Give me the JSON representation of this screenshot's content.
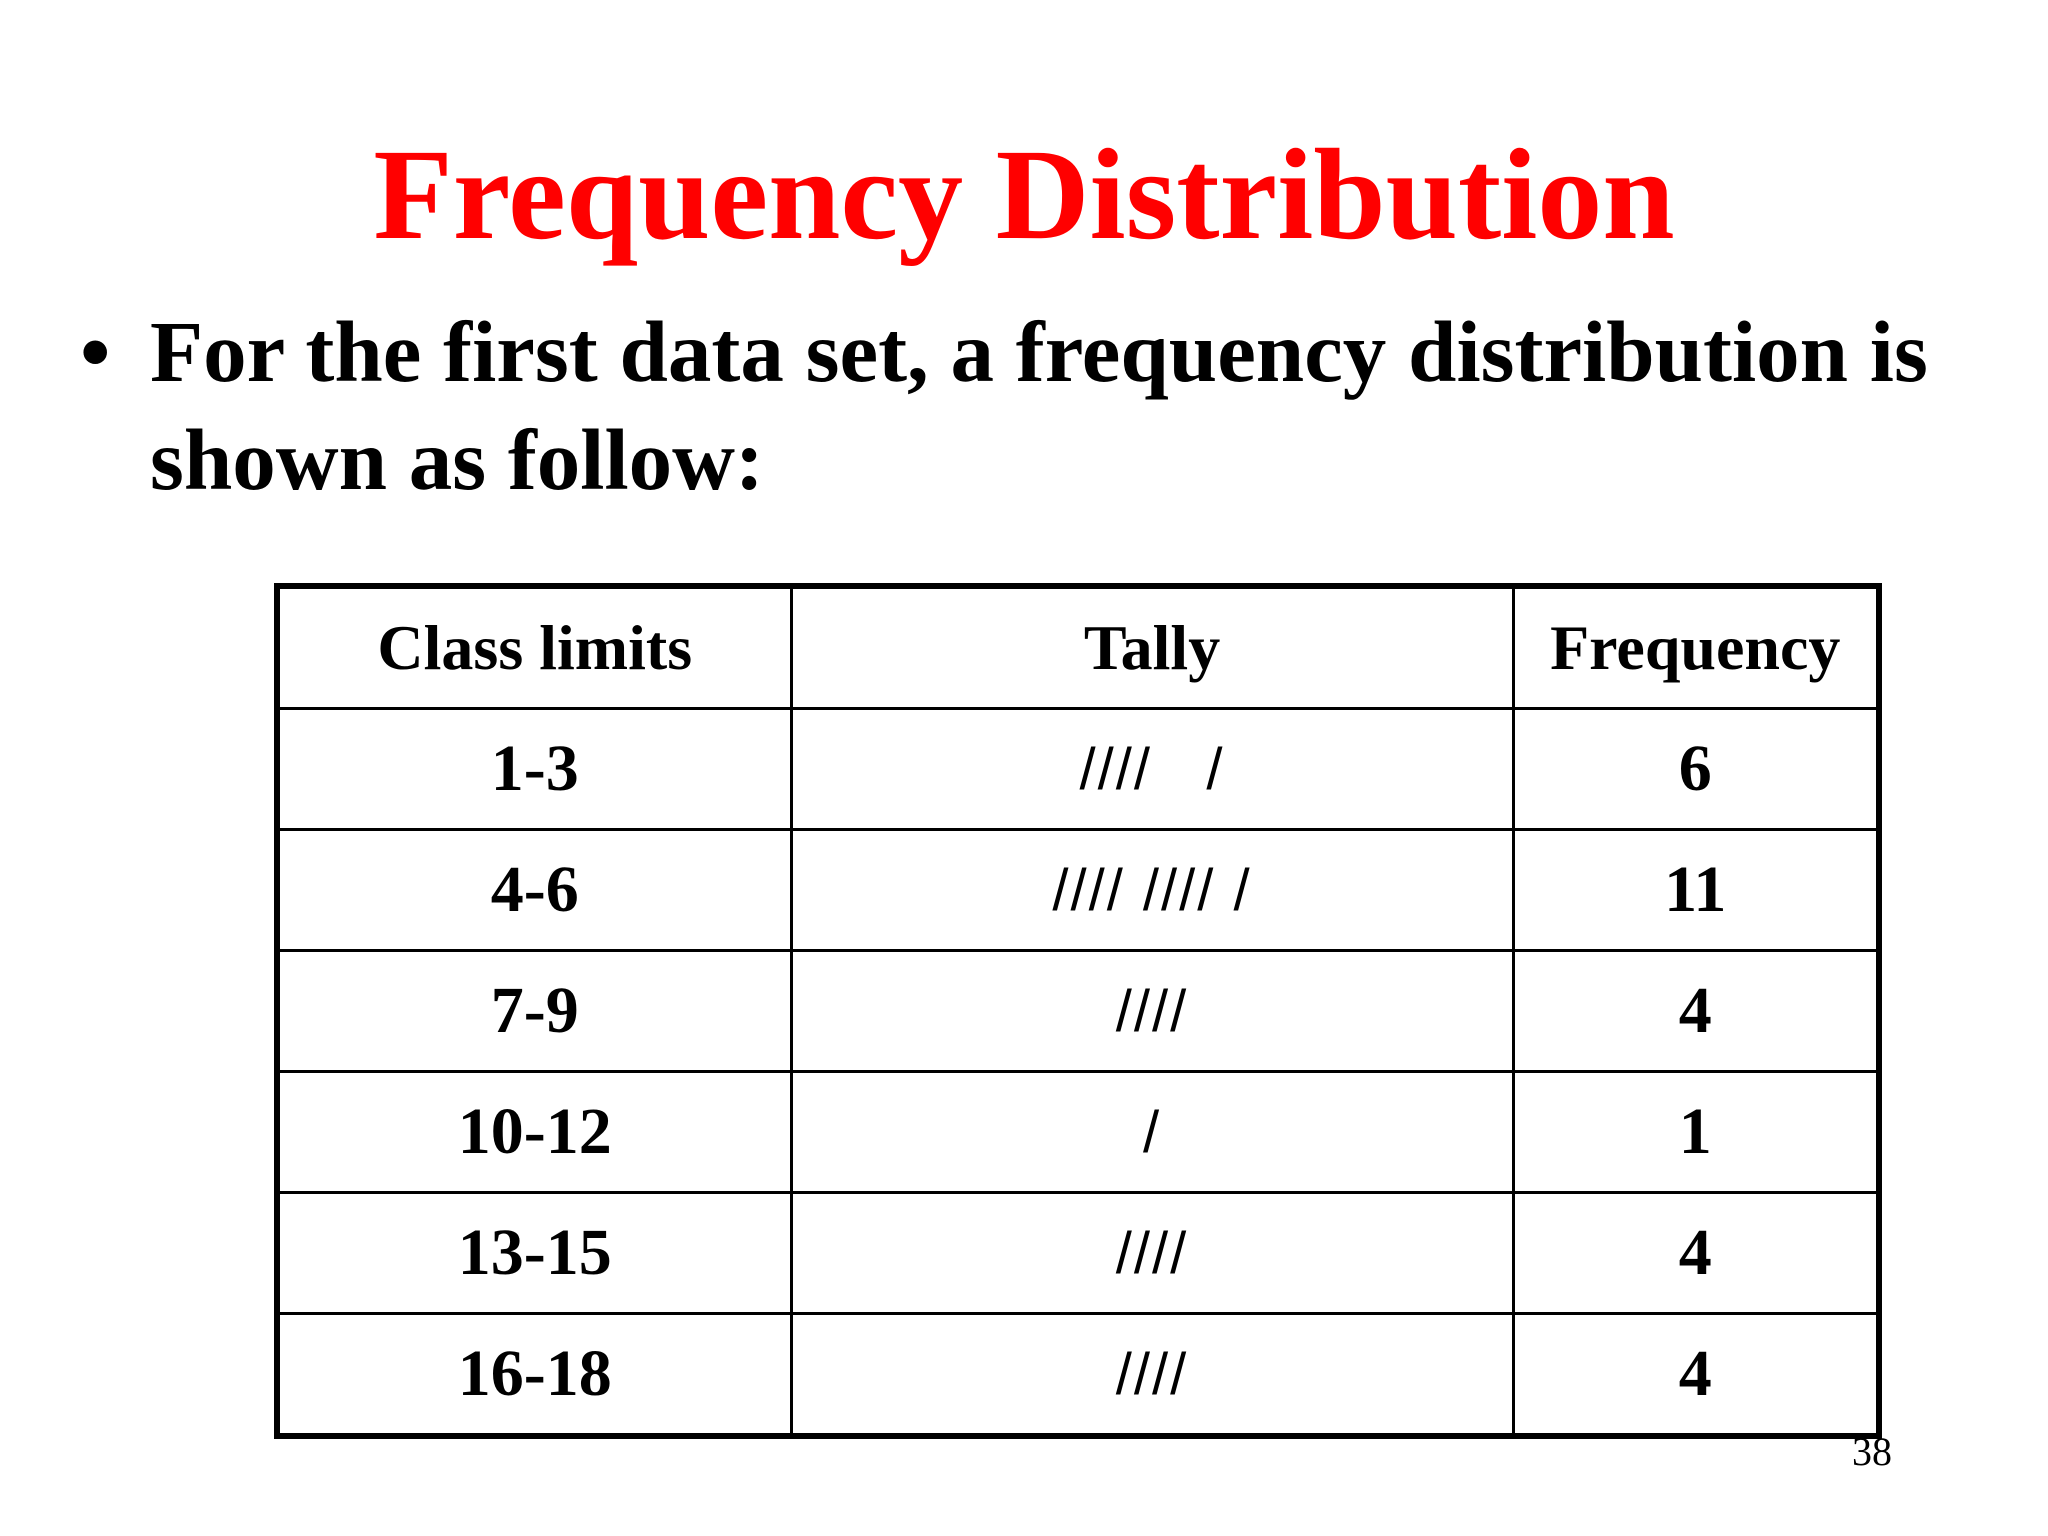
{
  "slide": {
    "title": "Frequency Distribution",
    "bullet_symbol": "•",
    "bullet_text": "For the first data set, a frequency distribution is shown as follow:",
    "page_number": "38"
  },
  "table": {
    "headers": [
      "Class limits",
      "Tally",
      "Frequency"
    ],
    "rows": [
      {
        "class_limits": "1-3",
        "tally": "̸̸̸̸ /",
        "frequency": "6"
      },
      {
        "class_limits": "4-6",
        "tally": "̸̸̸̸ ̸̸̸̸ /",
        "frequency": "11"
      },
      {
        "class_limits": "7-9",
        "tally": "////",
        "frequency": "4"
      },
      {
        "class_limits": "10-12",
        "tally": "/",
        "frequency": "1"
      },
      {
        "class_limits": "13-15",
        "tally": "////",
        "frequency": "4"
      },
      {
        "class_limits": "16-18",
        "tally": "////",
        "frequency": "4"
      }
    ]
  },
  "tally_display": [
    "////   /",
    "//// //// /",
    "////",
    "/",
    "////",
    "////"
  ]
}
